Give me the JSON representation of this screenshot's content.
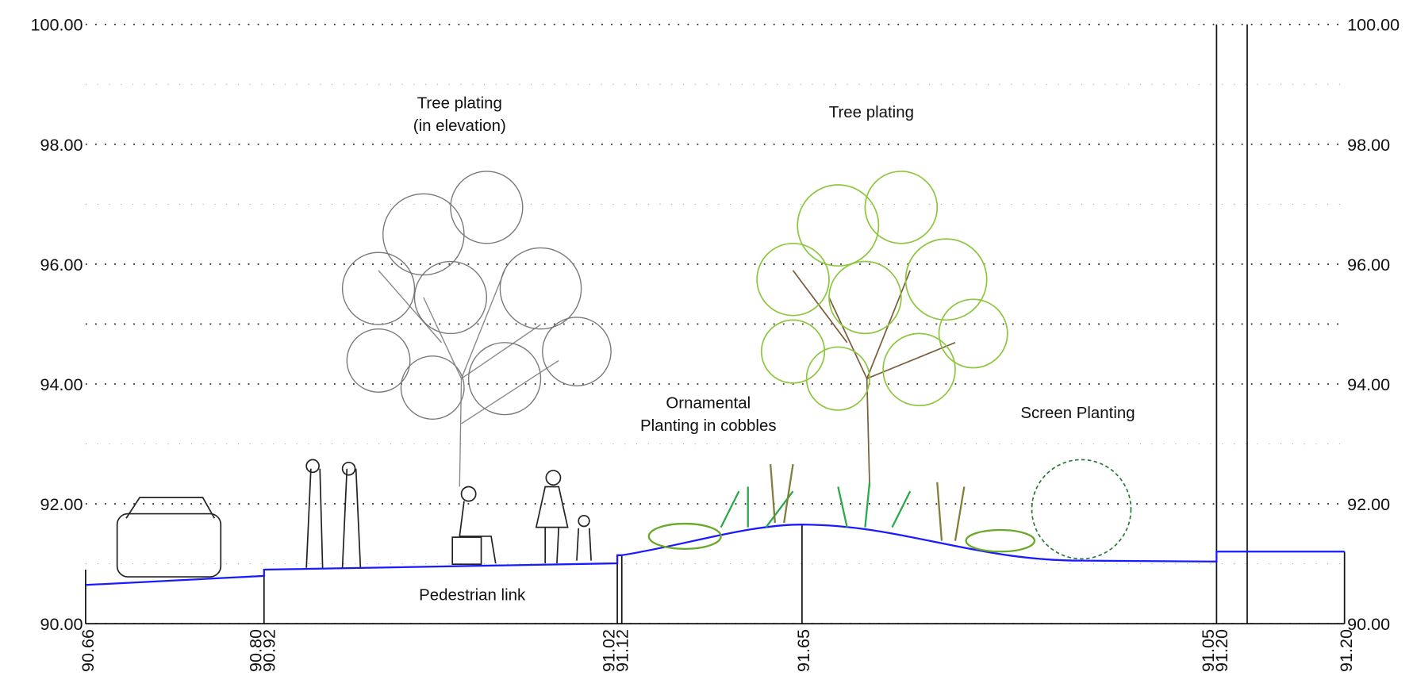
{
  "elevation_axis": {
    "left_labels": [
      "100.00",
      "98.00",
      "96.00",
      "94.00",
      "92.00",
      "90.00"
    ],
    "right_labels": [
      "100.00",
      "98.00",
      "96.00",
      "94.00",
      "92.00",
      "90.00"
    ]
  },
  "stations": [
    "90.66",
    "90.80",
    "90.92",
    "91.02",
    "91.12",
    "91.65",
    "91.05",
    "91.20",
    "91.20"
  ],
  "annotations": [
    {
      "lines": [
        "Tree plating",
        "(in elevation)"
      ]
    },
    {
      "lines": [
        "Tree plating"
      ]
    },
    {
      "lines": [
        "Ornamental",
        "Planting in cobbles"
      ]
    },
    {
      "lines": [
        "Screen Planting"
      ]
    },
    {
      "lines": [
        "Pedestrian link"
      ]
    }
  ]
}
